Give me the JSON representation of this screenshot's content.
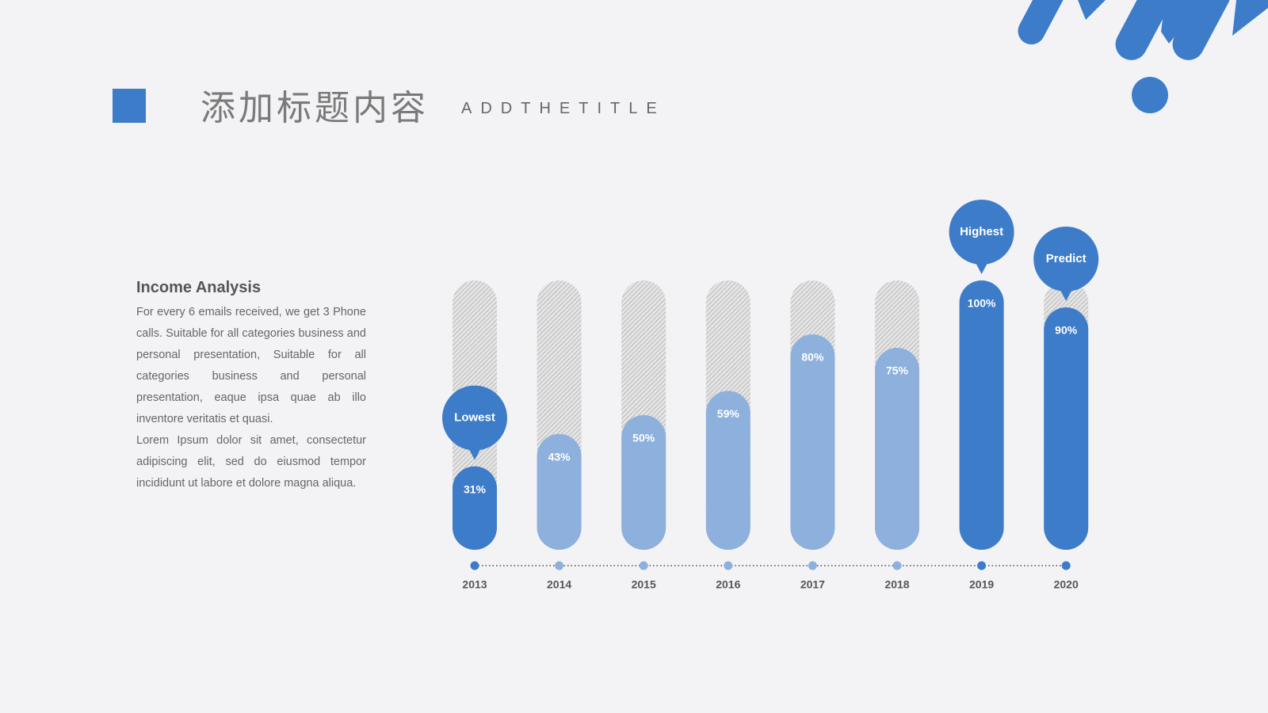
{
  "header": {
    "title": "添加标题内容",
    "subtitle": "ADDTHETITLE"
  },
  "text_block": {
    "heading": "Income Analysis",
    "paragraphs": [
      "For every 6 emails received, we get 3 Phone calls. Suitable for all categories business and personal presentation, Suitable for all categories business and personal presentation, eaque ipsa quae ab illo inventore veritatis et quasi.",
      "Lorem Ipsum dolor sit amet, consectetur adipiscing elit, sed do eiusmod tempor incididunt ut labore et dolore magna aliqua."
    ]
  },
  "chart_data": {
    "type": "bar",
    "categories": [
      "2013",
      "2014",
      "2015",
      "2016",
      "2017",
      "2018",
      "2019",
      "2020"
    ],
    "values": [
      31,
      43,
      50,
      59,
      80,
      75,
      100,
      90
    ],
    "value_labels": [
      "31%",
      "43%",
      "50%",
      "59%",
      "80%",
      "75%",
      "100%",
      "90%"
    ],
    "colors": [
      "#3d7cc9",
      "#8db0dc",
      "#8db0dc",
      "#8db0dc",
      "#8db0dc",
      "#8db0dc",
      "#3d7cc9",
      "#3d7cc9"
    ],
    "ylim": [
      0,
      100
    ],
    "annotations": [
      {
        "label": "Lowest",
        "category": "2013"
      },
      {
        "label": "Highest",
        "category": "2019"
      },
      {
        "label": "Predict",
        "category": "2020"
      }
    ]
  }
}
